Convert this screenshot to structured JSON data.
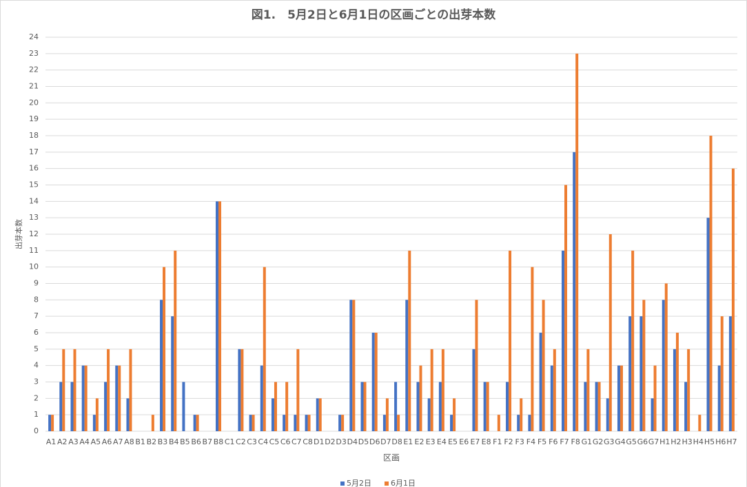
{
  "chart_data": {
    "type": "bar",
    "title": "図1.　5月2日と6月1日の区画ごとの出芽本数",
    "x_label": "区画",
    "y_label": "出芽本数",
    "categories": [
      "A1",
      "A2",
      "A3",
      "A4",
      "A5",
      "A6",
      "A7",
      "A8",
      "B1",
      "B2",
      "B3",
      "B4",
      "B5",
      "B6",
      "B7",
      "B8",
      "C1",
      "C2",
      "C3",
      "C4",
      "C5",
      "C6",
      "C7",
      "C8",
      "D1",
      "D2",
      "D3",
      "D4",
      "D5",
      "D6",
      "D7",
      "D8",
      "E1",
      "E2",
      "E3",
      "E4",
      "E5",
      "E6",
      "E7",
      "E8",
      "F1",
      "F2",
      "F3",
      "F4",
      "F5",
      "F6",
      "F7",
      "F8",
      "G1",
      "G2",
      "G3",
      "G4",
      "G5",
      "G6",
      "G7",
      "H1",
      "H2",
      "H3",
      "H4",
      "H5",
      "H6",
      "H7"
    ],
    "series": [
      {
        "name": "5月2日",
        "color": "#4472c4",
        "values": [
          1,
          3,
          3,
          4,
          1,
          3,
          4,
          2,
          0,
          0,
          8,
          7,
          3,
          1,
          0,
          14,
          0,
          5,
          1,
          4,
          2,
          1,
          1,
          1,
          2,
          0,
          1,
          8,
          3,
          6,
          1,
          3,
          8,
          3,
          2,
          3,
          1,
          0,
          5,
          3,
          0,
          3,
          1,
          1,
          6,
          4,
          11,
          17,
          3,
          3,
          2,
          4,
          7,
          7,
          2,
          8,
          5,
          3,
          0,
          13,
          4,
          7
        ]
      },
      {
        "name": "6月1日",
        "color": "#ed7d31",
        "values": [
          1,
          5,
          5,
          4,
          2,
          5,
          4,
          5,
          0,
          1,
          10,
          11,
          0,
          1,
          0,
          14,
          0,
          5,
          1,
          10,
          3,
          3,
          5,
          1,
          2,
          0,
          1,
          8,
          3,
          6,
          2,
          1,
          11,
          4,
          5,
          5,
          2,
          0,
          8,
          3,
          1,
          11,
          2,
          10,
          8,
          5,
          15,
          23,
          5,
          3,
          12,
          4,
          11,
          8,
          4,
          9,
          6,
          5,
          1,
          18,
          7,
          16
        ]
      }
    ],
    "ylim": [
      0,
      24
    ],
    "yticks": [
      0,
      1,
      2,
      3,
      4,
      5,
      6,
      7,
      8,
      9,
      10,
      11,
      12,
      13,
      14,
      15,
      16,
      17,
      18,
      19,
      20,
      21,
      22,
      23,
      24
    ],
    "grid": true,
    "legend": "bottom"
  }
}
